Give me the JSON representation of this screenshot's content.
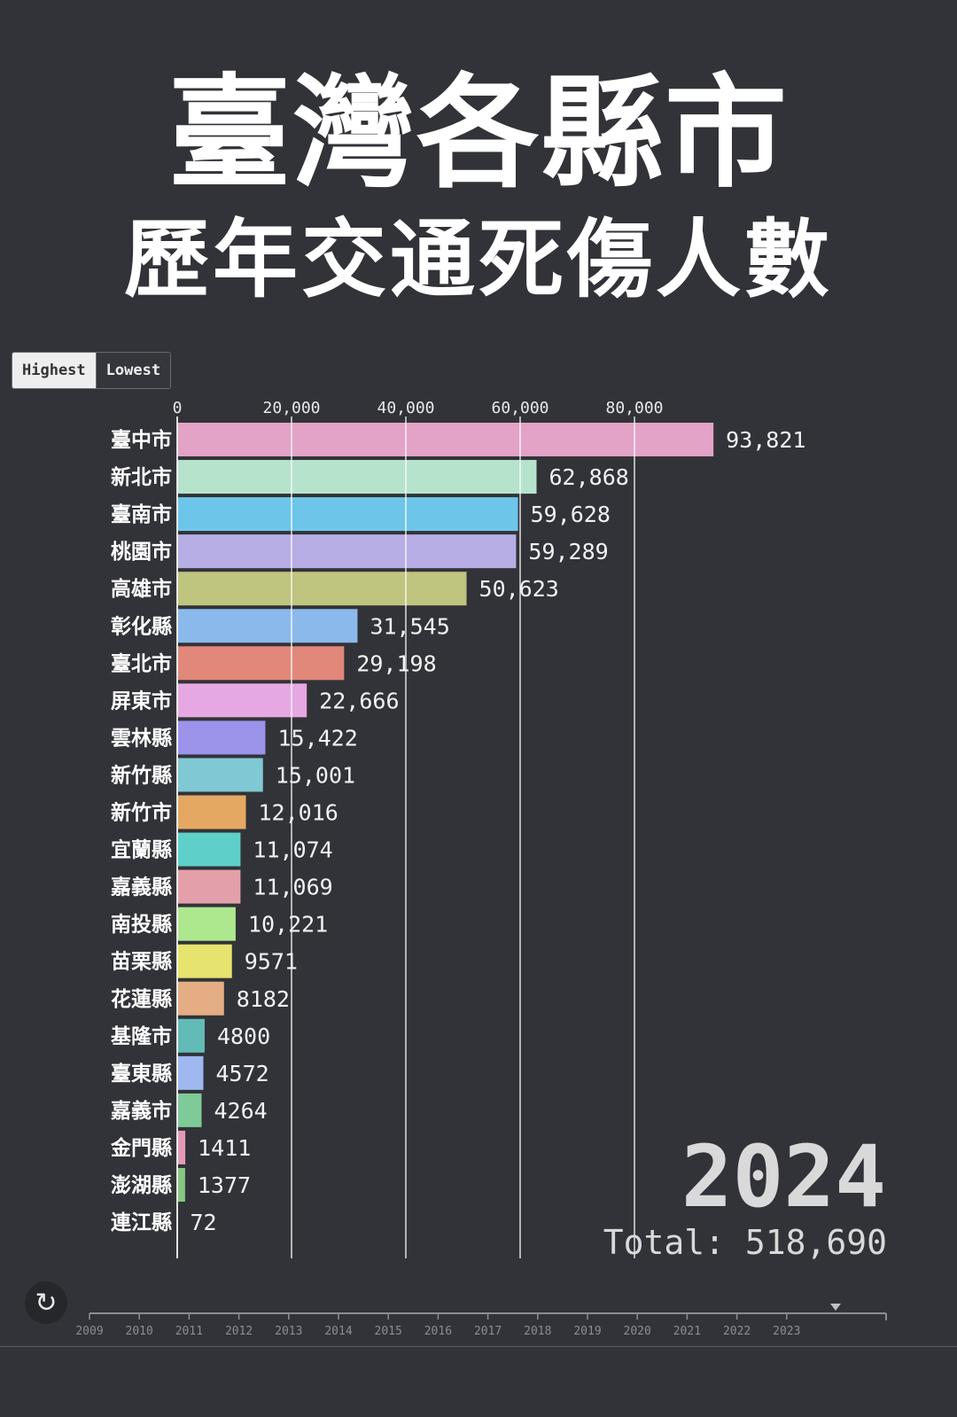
{
  "title_main": "臺灣各縣市",
  "title_sub": "歷年交通死傷人數",
  "sort": {
    "highest": "Highest",
    "lowest": "Lowest",
    "active": "highest"
  },
  "year_label": "2024",
  "total_label": "Total: 518,690",
  "replay_icon": "↻",
  "colors": {
    "background": "#323338",
    "text": "#ffffff",
    "year_text": "#d9d9d9"
  },
  "chart_data": {
    "type": "bar",
    "orientation": "horizontal",
    "categories": [
      "臺中市",
      "新北市",
      "臺南市",
      "桃園市",
      "高雄市",
      "彰化縣",
      "臺北市",
      "屏東市",
      "雲林縣",
      "新竹縣",
      "新竹市",
      "宜蘭縣",
      "嘉義縣",
      "南投縣",
      "苗栗縣",
      "花蓮縣",
      "基隆市",
      "臺東縣",
      "嘉義市",
      "金門縣",
      "澎湖縣",
      "連江縣"
    ],
    "values": [
      93821,
      62868,
      59628,
      59289,
      50623,
      31545,
      29198,
      22666,
      15422,
      15001,
      12016,
      11074,
      11069,
      10221,
      9571,
      8182,
      4800,
      4572,
      4264,
      1411,
      1377,
      72
    ],
    "value_labels": [
      "93,821",
      "62,868",
      "59,628",
      "59,289",
      "50,623",
      "31,545",
      "29,198",
      "22,666",
      "15,422",
      "15,001",
      "12,016",
      "11,074",
      "11,069",
      "10,221",
      "9571",
      "8182",
      "4800",
      "4572",
      "4264",
      "1411",
      "1377",
      "72"
    ],
    "colors": [
      "#e3a3c6",
      "#b6e3cc",
      "#6ec5ea",
      "#b8aee6",
      "#bfc47f",
      "#8cb9ec",
      "#e2887a",
      "#e6a8e2",
      "#9c94ea",
      "#80c8d3",
      "#e4a862",
      "#5ecfc9",
      "#e3a0aa",
      "#ade88e",
      "#e6e36e",
      "#e5ad84",
      "#63bbb7",
      "#9fb8f0",
      "#7fca99",
      "#e49ab7",
      "#86c782",
      "#999999"
    ],
    "x_ticks": [
      0,
      20000,
      40000,
      60000,
      80000
    ],
    "x_tick_labels": [
      "0",
      "20,000",
      "40,000",
      "60,000",
      "80,000"
    ],
    "xlim": [
      0,
      100000
    ],
    "grid": true,
    "year": 2024
  },
  "timeline": {
    "years": [
      "2009",
      "2010",
      "2011",
      "2012",
      "2013",
      "2014",
      "2015",
      "2016",
      "2017",
      "2018",
      "2019",
      "2020",
      "2021",
      "2022",
      "2023"
    ],
    "current_year": 2024
  }
}
